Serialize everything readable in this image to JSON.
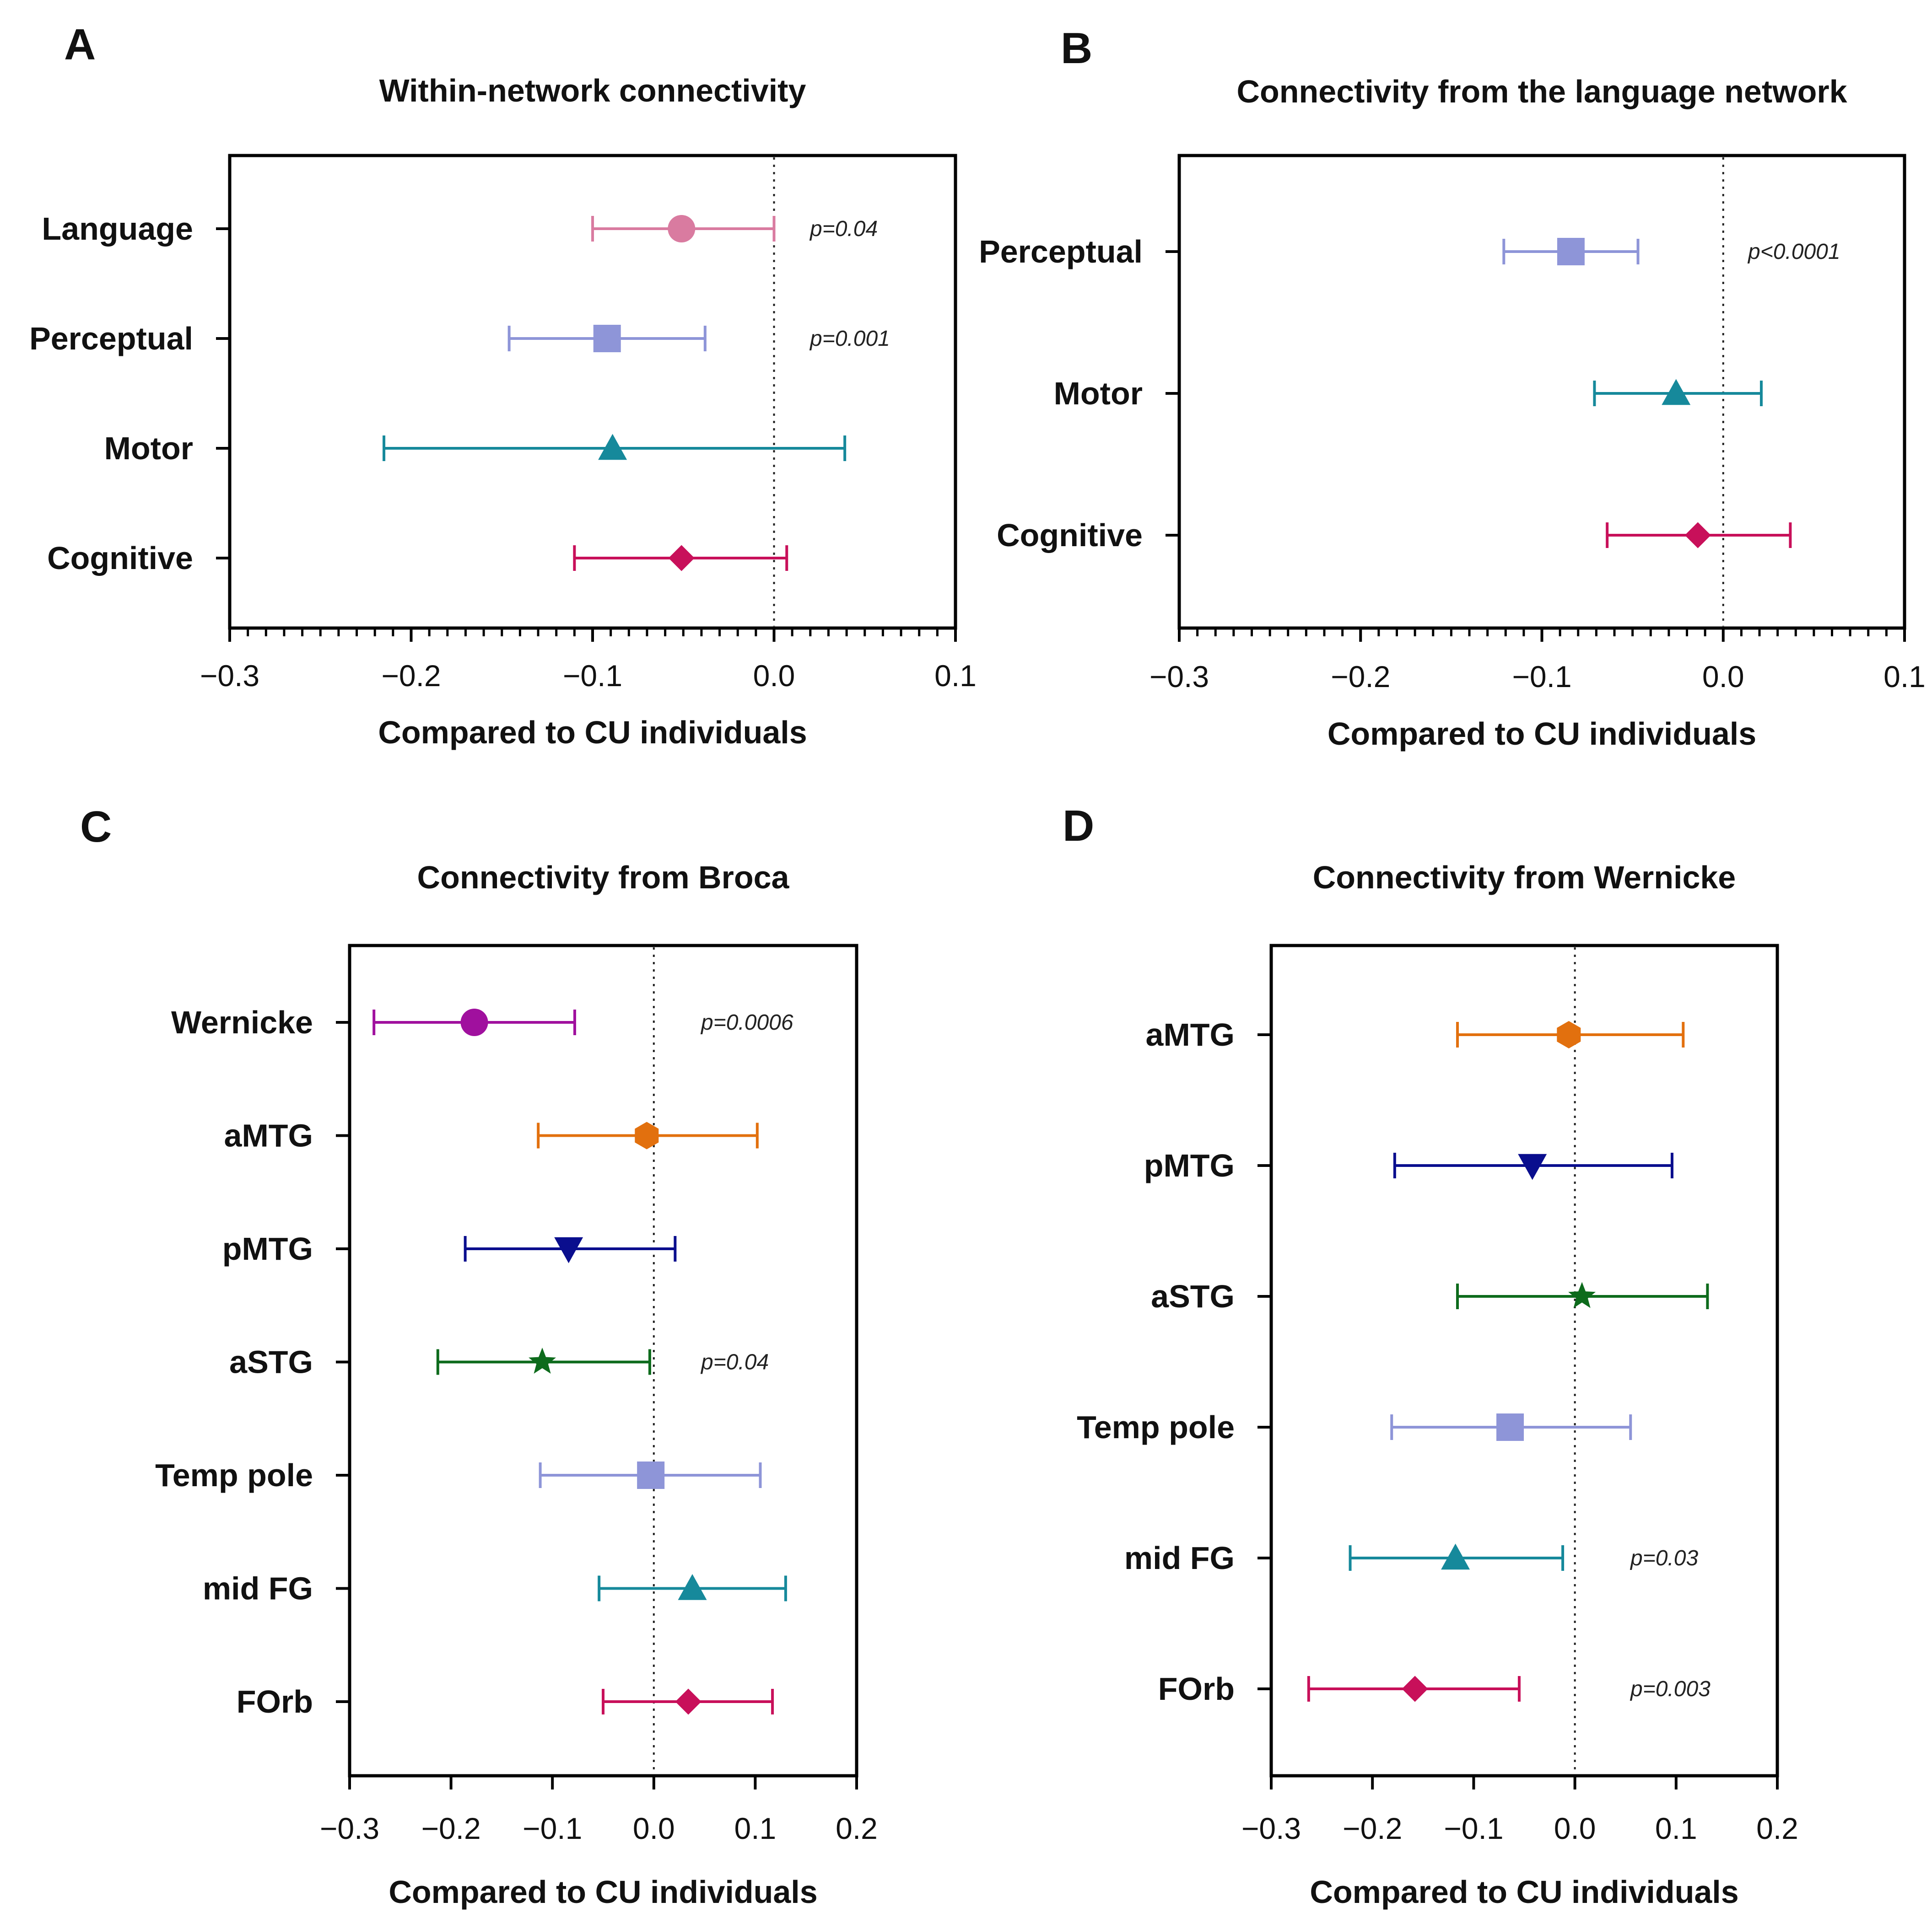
{
  "colors": {
    "language": "#D97BA0",
    "perceptual": "#8E95D8",
    "motor": "#16899B",
    "cognitive": "#C8105A",
    "wernicke": "#A0109E",
    "aMTG": "#E2700E",
    "pMTG": "#0A0E8E",
    "aSTG": "#0D6B1C",
    "temp_pole": "#8E95D8",
    "mid_FG": "#16899B",
    "FOrb": "#C8105A"
  },
  "chart_data": [
    {
      "id": "A",
      "type": "forest",
      "panel_letter": "A",
      "title": "Within-network connectivity",
      "xlabel": "Compared to CU individuals",
      "xlim": [
        -0.3,
        0.1
      ],
      "ticks": [
        -0.3,
        -0.2,
        -0.1,
        0.0,
        0.1
      ],
      "tick_labels": [
        "−0.3",
        "−0.2",
        "−0.1",
        "0.0",
        "0.1"
      ],
      "minor_step": 0.01,
      "reference_line": 0.0,
      "rows": [
        {
          "label": "Language",
          "estimate": -0.051,
          "low": -0.1,
          "high": 0.0,
          "marker": "circle",
          "color_key": "language",
          "p": "p=0.04"
        },
        {
          "label": "Perceptual",
          "estimate": -0.092,
          "low": -0.146,
          "high": -0.038,
          "marker": "square",
          "color_key": "perceptual",
          "p": "p=0.001"
        },
        {
          "label": "Motor",
          "estimate": -0.089,
          "low": -0.215,
          "high": 0.039,
          "marker": "triangle-up",
          "color_key": "motor",
          "p": ""
        },
        {
          "label": "Cognitive",
          "estimate": -0.051,
          "low": -0.11,
          "high": 0.007,
          "marker": "diamond",
          "color_key": "cognitive",
          "p": ""
        }
      ]
    },
    {
      "id": "B",
      "type": "forest",
      "panel_letter": "B",
      "title": "Connectivity from the language network",
      "xlabel": "Compared to CU individuals",
      "xlim": [
        -0.3,
        0.1
      ],
      "ticks": [
        -0.3,
        -0.2,
        -0.1,
        0.0,
        0.1
      ],
      "tick_labels": [
        "−0.3",
        "−0.2",
        "−0.1",
        "0.0",
        "0.1"
      ],
      "minor_step": 0.01,
      "reference_line": 0.0,
      "rows": [
        {
          "label": "Perceptual",
          "estimate": -0.084,
          "low": -0.121,
          "high": -0.047,
          "marker": "square",
          "color_key": "perceptual",
          "p": "p<0.0001"
        },
        {
          "label": "Motor",
          "estimate": -0.026,
          "low": -0.071,
          "high": 0.021,
          "marker": "triangle-up",
          "color_key": "motor",
          "p": ""
        },
        {
          "label": "Cognitive",
          "estimate": -0.014,
          "low": -0.064,
          "high": 0.037,
          "marker": "diamond",
          "color_key": "cognitive",
          "p": ""
        }
      ]
    },
    {
      "id": "C",
      "type": "forest",
      "panel_letter": "C",
      "title": "Connectivity from Broca",
      "xlabel": "Compared to CU individuals",
      "xlim": [
        -0.3,
        0.2
      ],
      "ticks": [
        -0.3,
        -0.2,
        -0.1,
        0.0,
        0.1,
        0.2
      ],
      "tick_labels": [
        "−0.3",
        "−0.2",
        "−0.1",
        "0.0",
        "0.1",
        "0.2"
      ],
      "minor_step": null,
      "reference_line": 0.0,
      "rows": [
        {
          "label": "Wernicke",
          "estimate": -0.177,
          "low": -0.276,
          "high": -0.078,
          "marker": "circle",
          "color_key": "wernicke",
          "p": "p=0.0006"
        },
        {
          "label": "aMTG",
          "estimate": -0.007,
          "low": -0.114,
          "high": 0.102,
          "marker": "hexagon",
          "color_key": "aMTG",
          "p": ""
        },
        {
          "label": "pMTG",
          "estimate": -0.084,
          "low": -0.186,
          "high": 0.021,
          "marker": "triangle-down",
          "color_key": "pMTG",
          "p": ""
        },
        {
          "label": "aSTG",
          "estimate": -0.11,
          "low": -0.213,
          "high": -0.004,
          "marker": "star",
          "color_key": "aSTG",
          "p": "p=0.04"
        },
        {
          "label": "Temp pole",
          "estimate": -0.003,
          "low": -0.112,
          "high": 0.105,
          "marker": "square",
          "color_key": "temp_pole",
          "p": ""
        },
        {
          "label": "mid FG",
          "estimate": 0.038,
          "low": -0.054,
          "high": 0.13,
          "marker": "triangle-up",
          "color_key": "mid_FG",
          "p": ""
        },
        {
          "label": "FOrb",
          "estimate": 0.034,
          "low": -0.05,
          "high": 0.117,
          "marker": "diamond",
          "color_key": "FOrb",
          "p": ""
        }
      ]
    },
    {
      "id": "D",
      "type": "forest",
      "panel_letter": "D",
      "title": "Connectivity from Wernicke",
      "xlabel": "Compared to CU individuals",
      "xlim": [
        -0.3,
        0.2
      ],
      "ticks": [
        -0.3,
        -0.2,
        -0.1,
        0.0,
        0.1,
        0.2
      ],
      "tick_labels": [
        "−0.3",
        "−0.2",
        "−0.1",
        "0.0",
        "0.1",
        "0.2"
      ],
      "minor_step": null,
      "reference_line": 0.0,
      "rows": [
        {
          "label": "aMTG",
          "estimate": -0.006,
          "low": -0.116,
          "high": 0.107,
          "marker": "hexagon",
          "color_key": "aMTG",
          "p": ""
        },
        {
          "label": "pMTG",
          "estimate": -0.042,
          "low": -0.178,
          "high": 0.096,
          "marker": "triangle-down",
          "color_key": "pMTG",
          "p": ""
        },
        {
          "label": "aSTG",
          "estimate": 0.007,
          "low": -0.116,
          "high": 0.131,
          "marker": "star",
          "color_key": "aSTG",
          "p": ""
        },
        {
          "label": "Temp pole",
          "estimate": -0.064,
          "low": -0.181,
          "high": 0.055,
          "marker": "square",
          "color_key": "temp_pole",
          "p": ""
        },
        {
          "label": "mid FG",
          "estimate": -0.118,
          "low": -0.222,
          "high": -0.012,
          "marker": "triangle-up",
          "color_key": "mid_FG",
          "p": "p=0.03"
        },
        {
          "label": "FOrb",
          "estimate": -0.158,
          "low": -0.263,
          "high": -0.055,
          "marker": "diamond",
          "color_key": "FOrb",
          "p": "p=0.003"
        }
      ]
    }
  ]
}
